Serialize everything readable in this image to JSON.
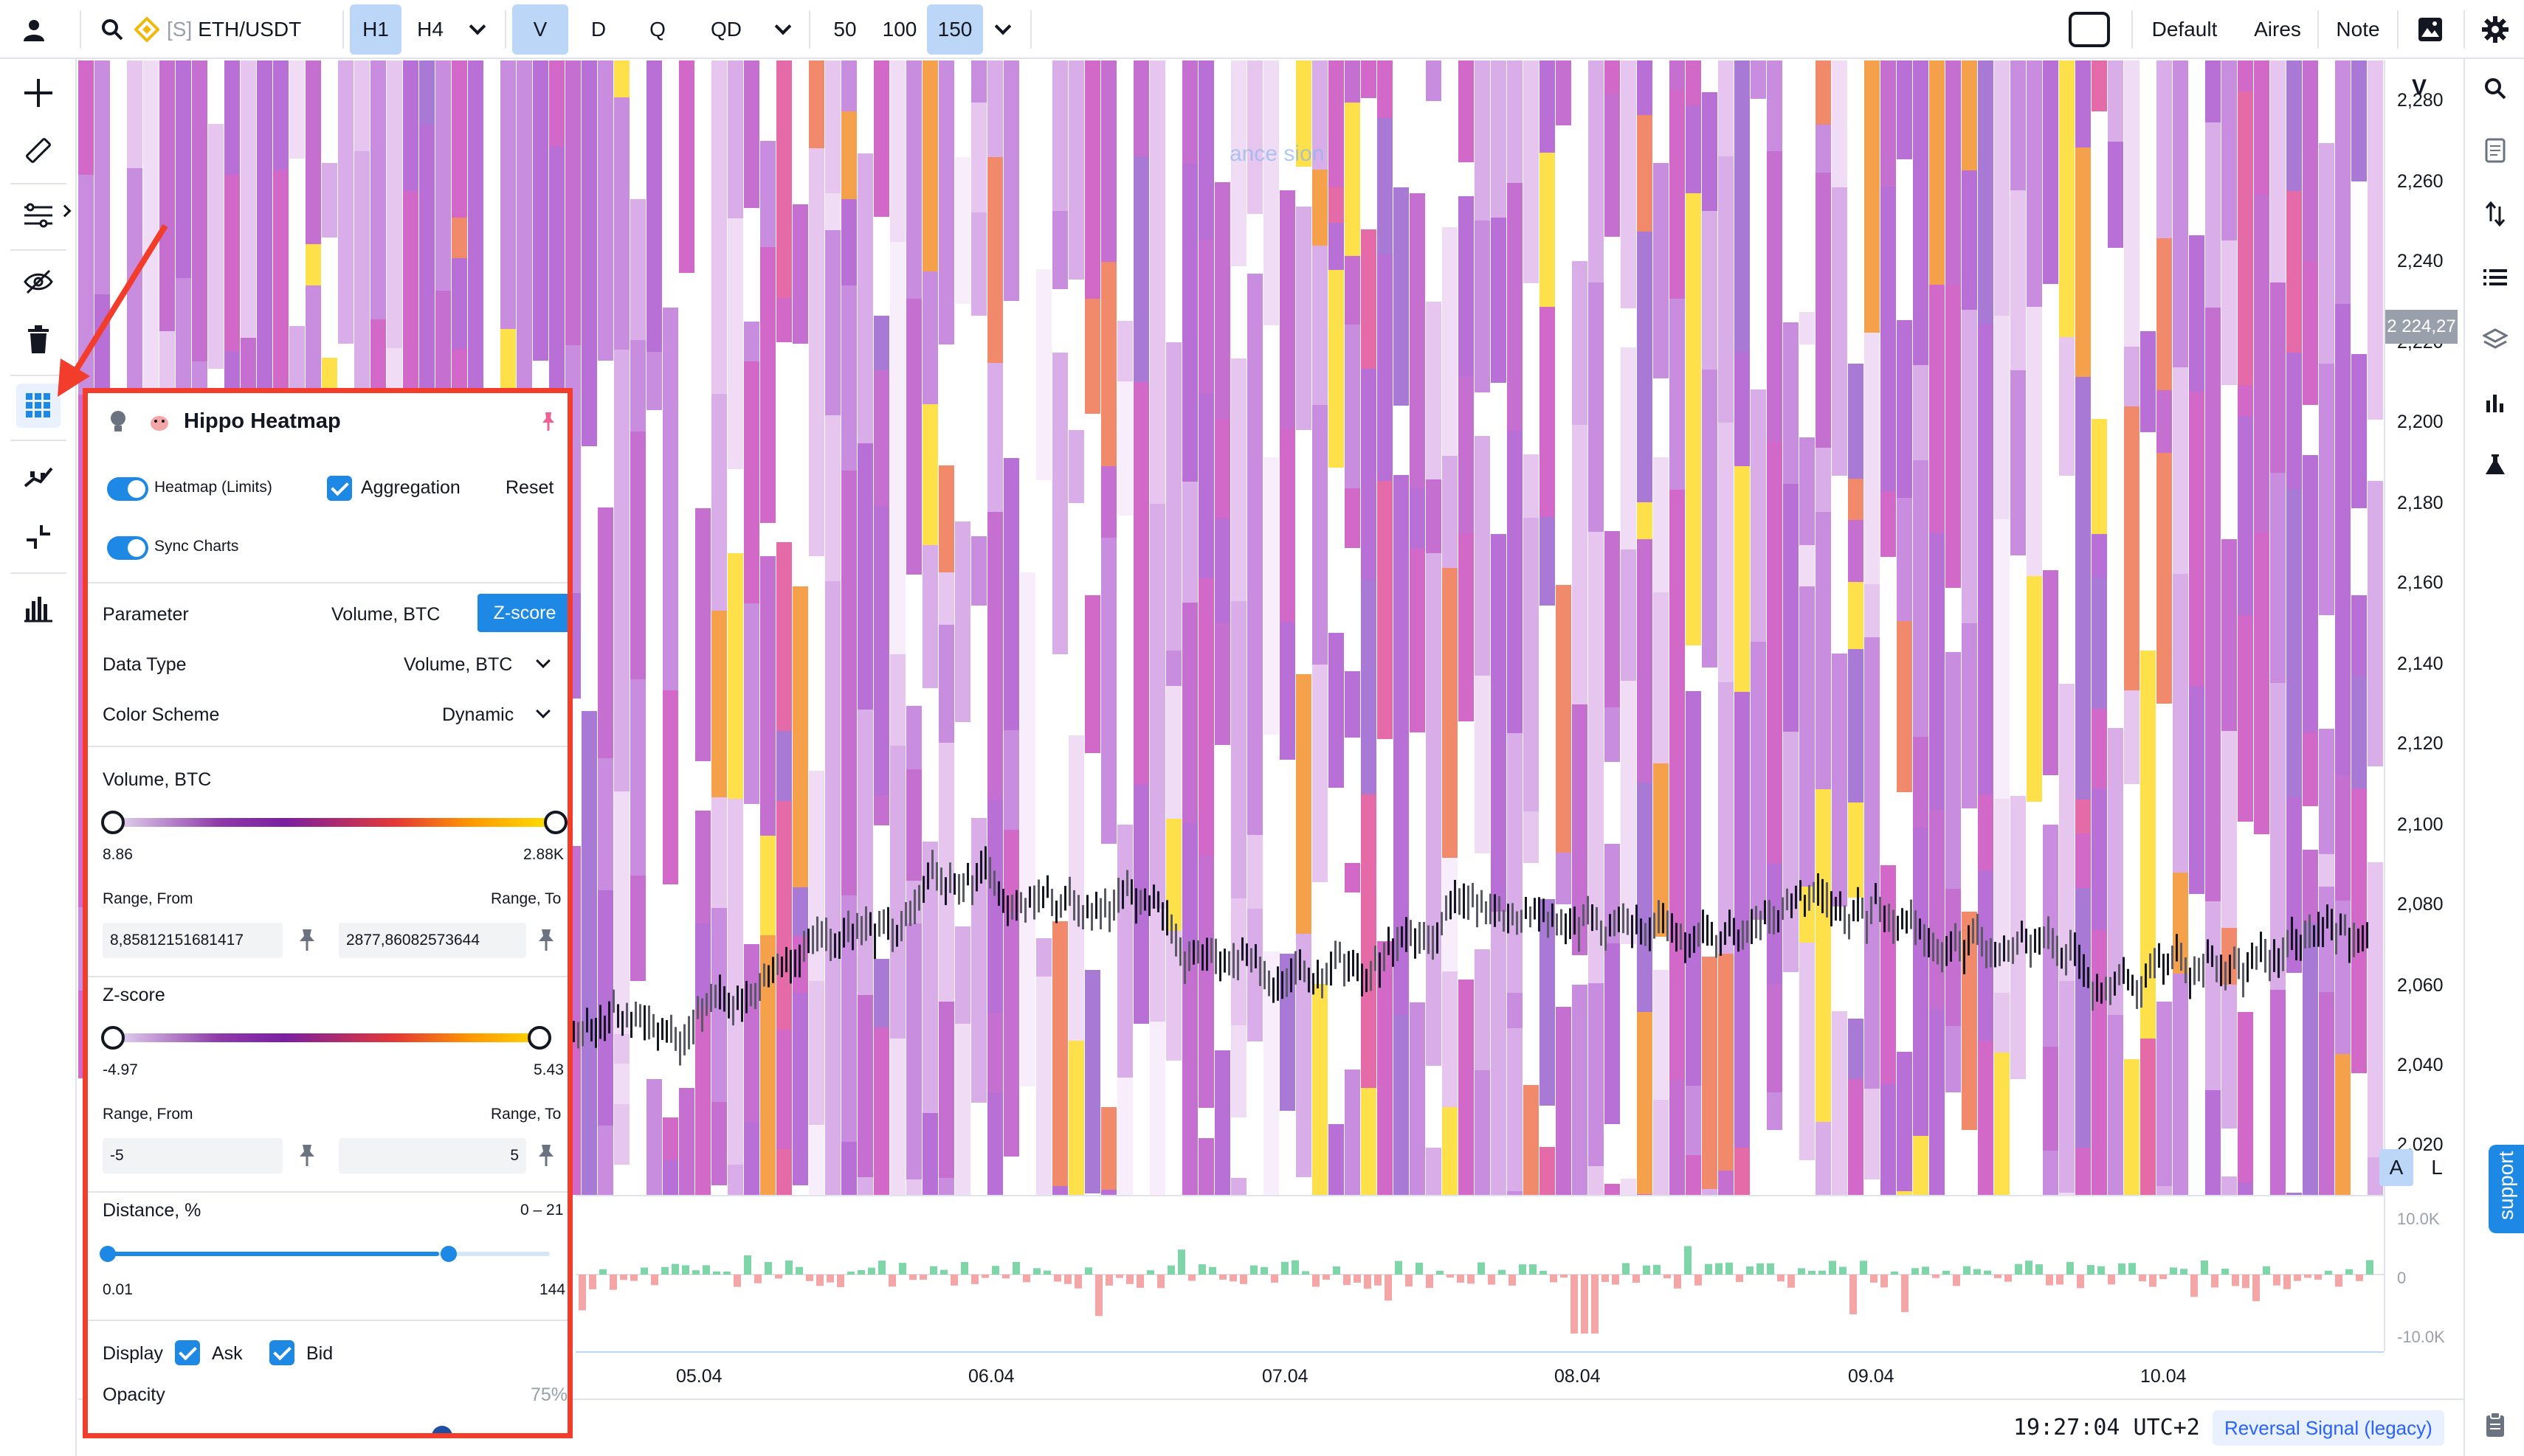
{
  "topbar": {
    "symbol_prefix": "[S]",
    "symbol": "ETH/USDT",
    "timeframes": [
      "H1",
      "H4"
    ],
    "modes": [
      "V",
      "D",
      "Q",
      "QD"
    ],
    "depth": [
      "50",
      "100",
      "150"
    ],
    "layouts": [
      "Default",
      "Aires",
      "Note"
    ]
  },
  "chart": {
    "watermark": "ance sion",
    "price_axis_title": "V",
    "price_labels": [
      "2,280",
      "2,260",
      "2,240",
      "2,220",
      "2,200",
      "2,180",
      "2,160",
      "2,140",
      "2,120",
      "2,100",
      "2,080",
      "2,060",
      "2,040",
      "2,020"
    ],
    "current_price": "2 224,27",
    "volume_labels": [
      "10.0K",
      "0",
      "-10.0K"
    ],
    "time_labels": [
      "05.04",
      "06.04",
      "07.04",
      "08.04",
      "09.04",
      "10.04"
    ],
    "auto_scale": "A",
    "log_scale": "L"
  },
  "bottombar": {
    "clock": "19:27:04 UTC+2",
    "signal": "Reversal Signal (legacy)"
  },
  "support_label": "support",
  "panel": {
    "title": "Hippo Heatmap",
    "heatmap_toggle": "Heatmap (Limits)",
    "aggregation": "Aggregation",
    "reset": "Reset",
    "sync": "Sync Charts",
    "parameter_label": "Parameter",
    "parameter_opt1": "Volume, BTC",
    "parameter_opt2": "Z-score",
    "datatype_label": "Data Type",
    "datatype_value": "Volume, BTC",
    "scheme_label": "Color Scheme",
    "scheme_value": "Dynamic",
    "volume_title": "Volume, BTC",
    "volume_min": "8.86",
    "volume_max": "2.88K",
    "range_from": "Range, From",
    "range_to": "Range, To",
    "volume_from_value": "8,85812151681417",
    "volume_to_value": "2877,86082573644",
    "zscore_title": "Z-score",
    "zscore_min": "-4.97",
    "zscore_max": "5.43",
    "zscore_from_value": "-5",
    "zscore_to_value": "5",
    "distance_title": "Distance, %",
    "distance_range": "0 – 21",
    "distance_min": "0.01",
    "distance_max": "144",
    "display_label": "Display",
    "ask": "Ask",
    "bid": "Bid",
    "opacity_label": "Opacity",
    "opacity_value": "75%"
  },
  "colors": {
    "accent": "#1e88e5",
    "highlight_border": "#f23c2c",
    "bull": "#7ed6a8",
    "bear": "#f4a5a5"
  },
  "chart_data": {
    "type": "heatmap",
    "x": [
      "05.04",
      "06.04",
      "07.04",
      "08.04",
      "09.04",
      "10.04"
    ],
    "ylim": [
      2020,
      2280
    ],
    "volume_ylim": [
      -10000,
      10000
    ],
    "current_price": 2224.27
  }
}
